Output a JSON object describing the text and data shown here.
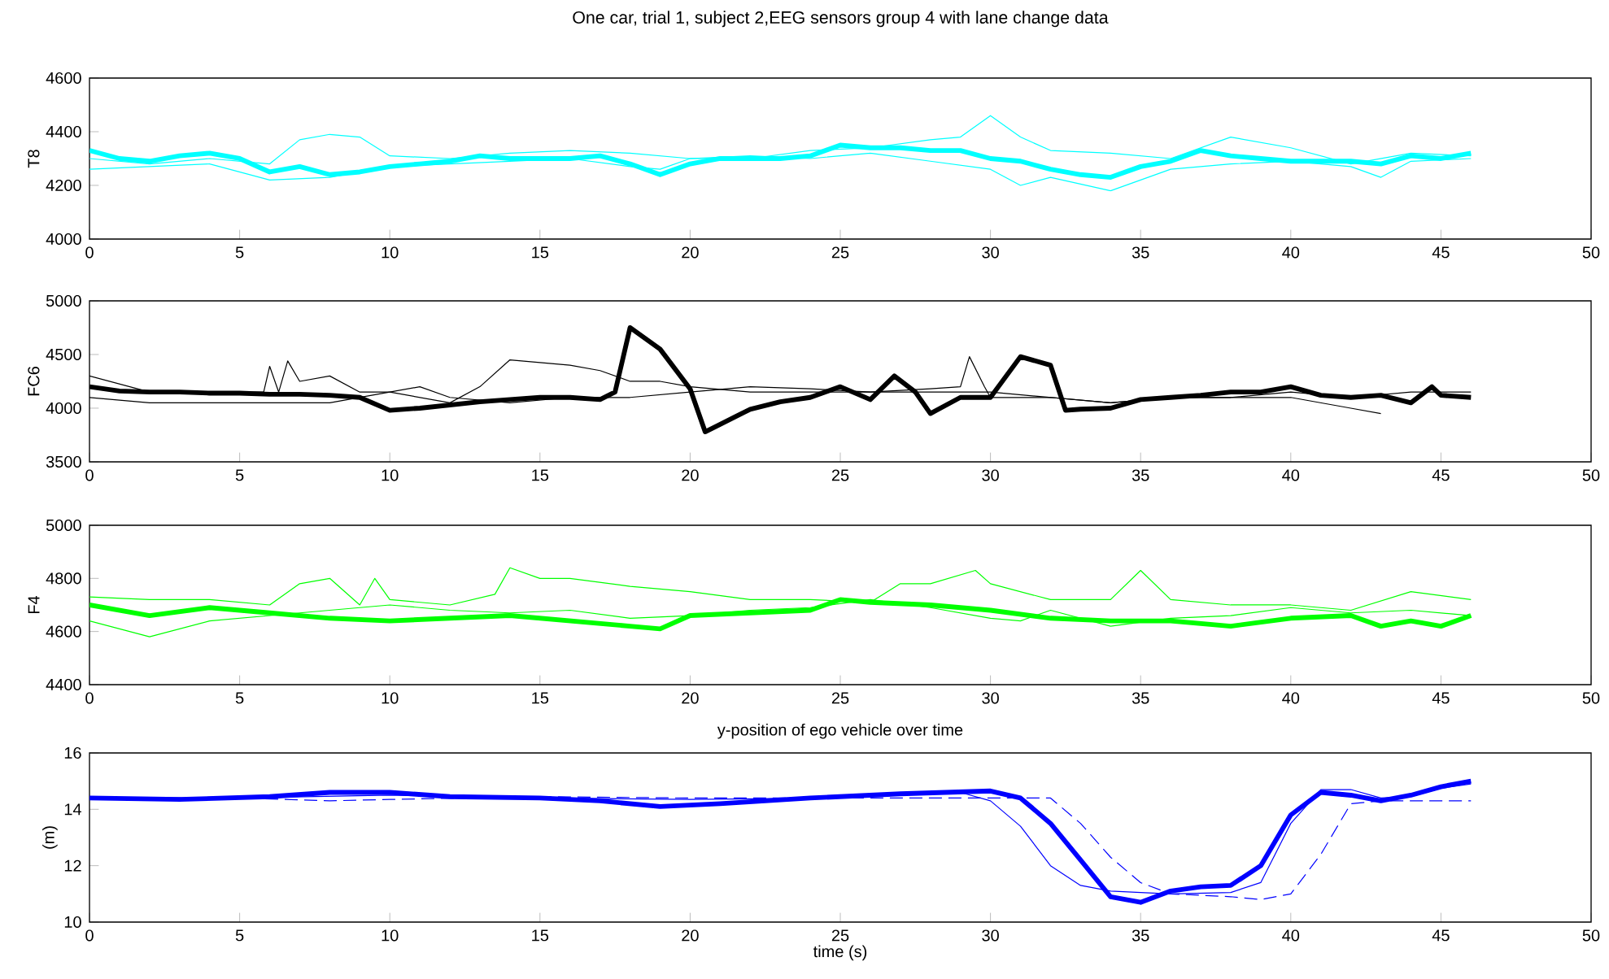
{
  "chart_data": [
    {
      "type": "line",
      "title": "One car, trial 1, subject 2,EEG sensors group 4 with lane change data",
      "ylabel": "T8",
      "xlim": [
        0,
        50
      ],
      "xticks": [
        0,
        5,
        10,
        15,
        20,
        25,
        30,
        35,
        40,
        45,
        50
      ],
      "ylim": [
        4000,
        4600
      ],
      "yticks": [
        4000,
        4200,
        4400,
        4600
      ],
      "marker": "none",
      "series": [
        {
          "color": "#00ffff",
          "line_style": "solid",
          "x": [
            0,
            1,
            2,
            3,
            4,
            5,
            6,
            7,
            8,
            9,
            10,
            11,
            12,
            13,
            14,
            15,
            16,
            17,
            18,
            19,
            20,
            21,
            22,
            23,
            24,
            25,
            26,
            27,
            28,
            29,
            30,
            31,
            32,
            33,
            34,
            35,
            36,
            37,
            38,
            39,
            40,
            41,
            42,
            43,
            44,
            45,
            46
          ],
          "values": [
            4330,
            4300,
            4290,
            4310,
            4320,
            4300,
            4250,
            4270,
            4240,
            4250,
            4270,
            4280,
            4290,
            4310,
            4300,
            4300,
            4300,
            4310,
            4280,
            4240,
            4280,
            4300,
            4300,
            4300,
            4310,
            4350,
            4340,
            4340,
            4330,
            4330,
            4300,
            4290,
            4260,
            4240,
            4230,
            4270,
            4290,
            4330,
            4310,
            4300,
            4290,
            4290,
            4290,
            4280,
            4310,
            4300,
            4320
          ]
        },
        {
          "color": "#00ffff",
          "line_style": "solid",
          "x": [
            0,
            2,
            4,
            6,
            7,
            8,
            9,
            10,
            12,
            14,
            16,
            18,
            20,
            22,
            24,
            26,
            28,
            29,
            30,
            31,
            32,
            34,
            36,
            38,
            40,
            42,
            44,
            46
          ],
          "values": [
            4300,
            4280,
            4300,
            4280,
            4370,
            4390,
            4380,
            4310,
            4300,
            4320,
            4330,
            4320,
            4300,
            4300,
            4330,
            4340,
            4370,
            4380,
            4460,
            4380,
            4330,
            4320,
            4300,
            4380,
            4340,
            4280,
            4320,
            4310
          ]
        },
        {
          "color": "#00ffff",
          "line_style": "solid",
          "x": [
            0,
            2,
            4,
            6,
            8,
            10,
            12,
            14,
            16,
            18,
            19,
            20,
            22,
            24,
            26,
            28,
            30,
            31,
            32,
            34,
            36,
            38,
            40,
            42,
            43,
            44,
            46
          ],
          "values": [
            4260,
            4270,
            4280,
            4220,
            4230,
            4270,
            4280,
            4290,
            4300,
            4270,
            4260,
            4300,
            4310,
            4300,
            4320,
            4290,
            4260,
            4200,
            4230,
            4180,
            4260,
            4280,
            4290,
            4270,
            4230,
            4290,
            4300
          ]
        }
      ]
    },
    {
      "type": "line",
      "ylabel": "FC6",
      "xlim": [
        0,
        50
      ],
      "xticks": [
        0,
        5,
        10,
        15,
        20,
        25,
        30,
        35,
        40,
        45,
        50
      ],
      "ylim": [
        3500,
        5000
      ],
      "yticks": [
        3500,
        4000,
        4500,
        5000
      ],
      "marker": "none",
      "series": [
        {
          "color": "#000000",
          "line_style": "solid",
          "x": [
            0,
            1,
            2,
            3,
            4,
            5,
            6,
            7,
            8,
            9,
            10,
            11,
            12,
            13,
            14,
            15,
            16,
            17,
            17.5,
            18,
            19,
            20,
            20.5,
            21,
            22,
            23,
            24,
            25,
            26,
            26.8,
            27.5,
            28,
            29,
            30,
            31,
            32,
            32.5,
            33,
            34,
            35,
            36,
            37,
            38,
            39,
            40,
            41,
            42,
            43,
            44,
            44.7,
            45,
            46
          ],
          "values": [
            4200,
            4160,
            4150,
            4150,
            4140,
            4140,
            4130,
            4130,
            4120,
            4100,
            3980,
            4000,
            4030,
            4060,
            4080,
            4100,
            4100,
            4080,
            4150,
            4750,
            4550,
            4180,
            3780,
            3850,
            3990,
            4060,
            4100,
            4200,
            4080,
            4300,
            4150,
            3950,
            4100,
            4100,
            4480,
            4400,
            3980,
            3990,
            4000,
            4080,
            4100,
            4120,
            4150,
            4150,
            4200,
            4120,
            4100,
            4120,
            4050,
            4200,
            4120,
            4100
          ]
        },
        {
          "color": "#000000",
          "line_style": "solid",
          "x": [
            0,
            2,
            4,
            5.8,
            6,
            6.3,
            6.6,
            7,
            8,
            9,
            10,
            12,
            13,
            14,
            16,
            17,
            18,
            19,
            20,
            22,
            24,
            26,
            28,
            29,
            29.3,
            29.8,
            30,
            32,
            34,
            36,
            38,
            40,
            42,
            43
          ],
          "values": [
            4300,
            4150,
            4150,
            4150,
            4390,
            4150,
            4440,
            4250,
            4300,
            4150,
            4150,
            4050,
            4200,
            4450,
            4400,
            4350,
            4250,
            4250,
            4200,
            4150,
            4150,
            4150,
            4180,
            4200,
            4480,
            4200,
            4100,
            4100,
            4050,
            4100,
            4100,
            4100,
            4000,
            3950
          ]
        },
        {
          "color": "#000000",
          "line_style": "solid",
          "x": [
            0,
            2,
            4,
            6,
            8,
            10,
            11,
            12,
            14,
            16,
            18,
            20,
            22,
            24,
            26,
            28,
            30,
            32,
            34,
            36,
            38,
            40,
            42,
            44,
            46
          ],
          "values": [
            4100,
            4050,
            4050,
            4050,
            4050,
            4150,
            4200,
            4100,
            4050,
            4100,
            4100,
            4150,
            4200,
            4180,
            4150,
            4150,
            4150,
            4100,
            4050,
            4100,
            4100,
            4150,
            4100,
            4150,
            4150
          ]
        }
      ]
    },
    {
      "type": "line",
      "ylabel": "F4",
      "xlim": [
        0,
        50
      ],
      "xticks": [
        0,
        5,
        10,
        15,
        20,
        25,
        30,
        35,
        40,
        45,
        50
      ],
      "ylim": [
        4400,
        5000
      ],
      "yticks": [
        4400,
        4600,
        4800,
        5000
      ],
      "marker": "none",
      "series": [
        {
          "color": "#00ff00",
          "line_style": "solid",
          "x": [
            0,
            1,
            2,
            4,
            6,
            8,
            10,
            12,
            14,
            16,
            18,
            19,
            20,
            22,
            24,
            25,
            26,
            28,
            30,
            32,
            34,
            36,
            38,
            40,
            42,
            43,
            44,
            45,
            46
          ],
          "values": [
            4700,
            4680,
            4660,
            4690,
            4670,
            4650,
            4640,
            4650,
            4660,
            4640,
            4620,
            4610,
            4660,
            4670,
            4680,
            4720,
            4710,
            4700,
            4680,
            4650,
            4640,
            4640,
            4620,
            4650,
            4660,
            4620,
            4640,
            4620,
            4660
          ]
        },
        {
          "color": "#00ff00",
          "line_style": "solid",
          "x": [
            0,
            2,
            4,
            6,
            7,
            8,
            9,
            9.5,
            10,
            12,
            13.5,
            14,
            15,
            16,
            18,
            20,
            22,
            24,
            26,
            27,
            28,
            29.5,
            30,
            32,
            34,
            35,
            36,
            38,
            40,
            42,
            44,
            46
          ],
          "values": [
            4730,
            4720,
            4720,
            4700,
            4780,
            4800,
            4700,
            4800,
            4720,
            4700,
            4740,
            4840,
            4800,
            4800,
            4770,
            4750,
            4720,
            4720,
            4710,
            4780,
            4780,
            4830,
            4780,
            4720,
            4720,
            4830,
            4720,
            4700,
            4700,
            4680,
            4750,
            4720
          ]
        },
        {
          "color": "#00ff00",
          "line_style": "solid",
          "x": [
            0,
            2,
            4,
            6,
            8,
            10,
            12,
            14,
            16,
            18,
            20,
            22,
            24,
            26,
            28,
            30,
            31,
            32,
            34,
            36,
            38,
            40,
            42,
            44,
            46
          ],
          "values": [
            4640,
            4580,
            4640,
            4660,
            4680,
            4700,
            4680,
            4670,
            4680,
            4650,
            4660,
            4680,
            4690,
            4720,
            4690,
            4650,
            4640,
            4680,
            4620,
            4650,
            4660,
            4690,
            4670,
            4680,
            4660
          ]
        }
      ]
    },
    {
      "type": "line",
      "title": "y-position of ego vehicle over time",
      "xlabel": "time (s)",
      "ylabel": "(m)",
      "xlim": [
        0,
        50
      ],
      "xticks": [
        0,
        5,
        10,
        15,
        20,
        25,
        30,
        35,
        40,
        45,
        50
      ],
      "ylim": [
        10,
        16
      ],
      "yticks": [
        10,
        12,
        14,
        16
      ],
      "marker": "none",
      "series": [
        {
          "color": "#0000ff",
          "line_style": "solid",
          "x": [
            0,
            3,
            6,
            8,
            10,
            12,
            15,
            17,
            19,
            21,
            24,
            27,
            30,
            31,
            32,
            33,
            34,
            35,
            36,
            37,
            38,
            39,
            40,
            41,
            42,
            43,
            44,
            45,
            46
          ],
          "values": [
            14.4,
            14.35,
            14.45,
            14.6,
            14.6,
            14.45,
            14.4,
            14.3,
            14.1,
            14.2,
            14.4,
            14.55,
            14.65,
            14.4,
            13.5,
            12.2,
            10.9,
            10.7,
            11.1,
            11.25,
            11.3,
            12.0,
            13.8,
            14.6,
            14.5,
            14.3,
            14.5,
            14.8,
            15.0
          ]
        },
        {
          "color": "#0000ff",
          "line_style": "solid",
          "x": [
            0,
            5,
            10,
            15,
            20,
            25,
            29,
            30,
            31,
            32,
            33,
            34,
            36,
            38,
            39,
            40,
            41,
            42,
            43,
            44,
            45,
            46
          ],
          "values": [
            14.4,
            14.4,
            14.5,
            14.4,
            14.35,
            14.4,
            14.6,
            14.3,
            13.4,
            12.0,
            11.3,
            11.1,
            11.0,
            11.05,
            11.4,
            13.5,
            14.7,
            14.7,
            14.4,
            14.45,
            14.75,
            14.9
          ]
        },
        {
          "color": "#0000ff",
          "line_style": "dashed",
          "x": [
            0,
            5,
            8,
            10,
            15,
            20,
            25,
            30,
            32,
            33,
            34,
            35,
            36,
            38,
            39,
            40,
            41,
            42,
            43,
            45,
            46
          ],
          "values": [
            14.4,
            14.4,
            14.3,
            14.35,
            14.45,
            14.4,
            14.4,
            14.4,
            14.4,
            13.5,
            12.3,
            11.4,
            11.0,
            10.9,
            10.8,
            11.0,
            12.4,
            14.2,
            14.3,
            14.3,
            14.3
          ]
        }
      ]
    }
  ]
}
